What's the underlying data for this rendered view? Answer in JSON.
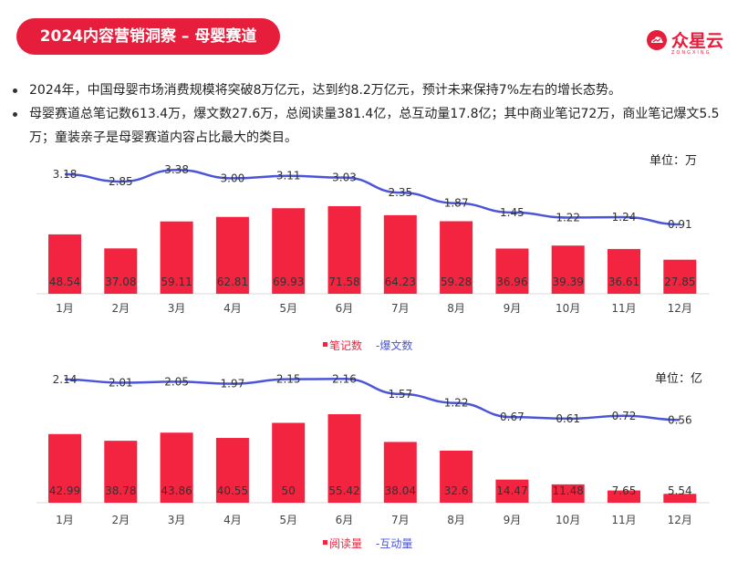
{
  "header": {
    "title": "2024内容营销洞察 – 母婴赛道",
    "brand_name": "众星云",
    "brand_sub": "ZONGXING",
    "brand_icon": "cloud-logo-icon",
    "accent": "#e61e3c"
  },
  "bullets": [
    "2024年，中国母婴市场消费规模将突破8万亿元，达到约8.2万亿元，预计未来保持7%左右的增长态势。",
    "母婴赛道总笔记数613.4万，爆文数27.6万，总阅读量381.4亿，总互动量17.8亿；其中商业笔记72万，商业笔记爆文5.5万；童装亲子是母婴赛道内容占比最大的类目。"
  ],
  "chart_data": [
    {
      "type": "bar",
      "unit": "单位：万",
      "categories": [
        "1月",
        "2月",
        "3月",
        "4月",
        "5月",
        "6月",
        "7月",
        "8月",
        "9月",
        "10月",
        "11月",
        "12月"
      ],
      "series": [
        {
          "name": "笔记数",
          "type": "bar",
          "color": "#f2243f",
          "values": [
            48.54,
            37.08,
            59.11,
            62.81,
            69.93,
            71.58,
            64.23,
            59.28,
            36.96,
            39.39,
            36.61,
            27.85
          ]
        },
        {
          "name": "爆文数",
          "type": "line",
          "color": "#4a55d8",
          "values": [
            3.18,
            2.85,
            3.38,
            3.0,
            3.11,
            3.03,
            2.35,
            1.87,
            1.45,
            1.22,
            1.24,
            0.91
          ]
        }
      ],
      "legend": "bottom",
      "legend_items": [
        "笔记数",
        "-爆文数"
      ],
      "grid": false
    },
    {
      "type": "bar",
      "unit": "单位：亿",
      "categories": [
        "1月",
        "2月",
        "3月",
        "4月",
        "5月",
        "6月",
        "7月",
        "8月",
        "9月",
        "10月",
        "11月",
        "12月"
      ],
      "series": [
        {
          "name": "阅读量",
          "type": "bar",
          "color": "#f2243f",
          "values": [
            42.99,
            38.78,
            43.86,
            40.55,
            50,
            55.42,
            38.04,
            32.6,
            14.47,
            11.48,
            7.65,
            5.54
          ]
        },
        {
          "name": "互动量",
          "type": "line",
          "color": "#4a55d8",
          "values": [
            2.14,
            2.01,
            2.05,
            1.97,
            2.15,
            2.16,
            1.57,
            1.22,
            0.67,
            0.61,
            0.72,
            0.56
          ]
        }
      ],
      "legend": "bottom",
      "legend_items": [
        "阅读量",
        "-互动量"
      ],
      "grid": false
    }
  ]
}
